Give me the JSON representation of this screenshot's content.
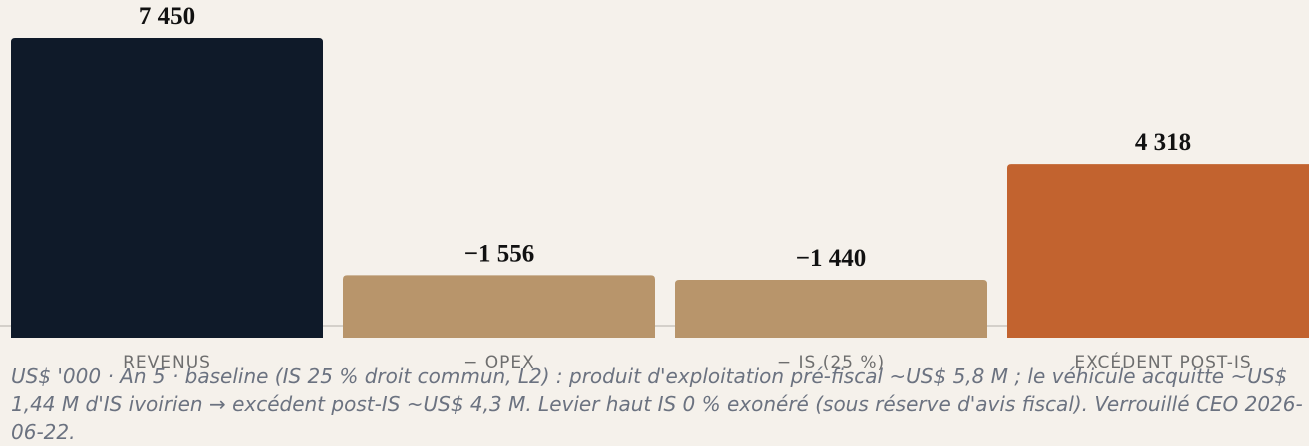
{
  "chart_data": {
    "type": "bar",
    "categories": [
      "REVENUS",
      "− OPEX",
      "− IS (25 %)",
      "EXCÉDENT POST-IS"
    ],
    "values": [
      7450,
      -1556,
      -1440,
      4318
    ],
    "value_labels": [
      "7 450",
      "−1 556",
      "−1 440",
      "4 318"
    ],
    "colors": [
      "#0f1a29",
      "#b8956b",
      "#b8956b",
      "#c2632f"
    ],
    "caption": "US$ '000 · An 5 · baseline (IS 25 % droit commun, L2) : produit d'exploitation pré-fiscal ~US$ 5,8 M ; le véhicule acquitte ~US$ 1,44 M d'IS ivoirien → excédent post-IS ~US$ 4,3 M. Levier haut IS 0 % exonéré (sous réserve d'avis fiscal). Verrouillé CEO 2026-06-22."
  }
}
